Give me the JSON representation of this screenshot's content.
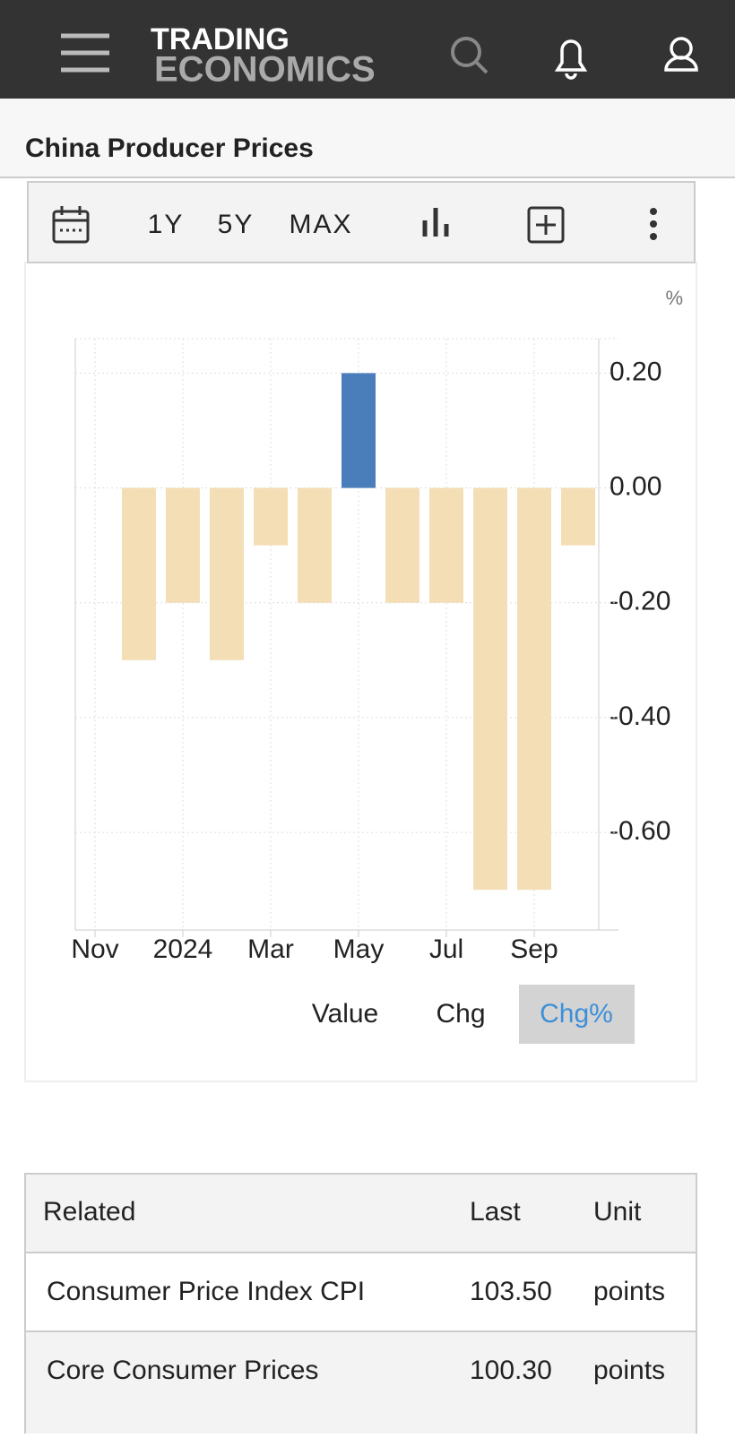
{
  "header": {
    "logo_top": "TRADING",
    "logo_bottom": "ECONOMICS"
  },
  "page_title": "China Producer Prices",
  "toolbar": {
    "ranges": [
      "1Y",
      "5Y",
      "MAX"
    ]
  },
  "chart_data": {
    "type": "bar",
    "unit": "%",
    "categories": [
      "Nov",
      null,
      "2024",
      null,
      "Mar",
      null,
      "May",
      null,
      "Jul",
      null,
      "Sep",
      null
    ],
    "values": [
      null,
      -0.3,
      -0.2,
      -0.3,
      -0.1,
      -0.2,
      0.2,
      -0.2,
      -0.2,
      -0.7,
      -0.7,
      -0.1
    ],
    "positive_color": "#4a7ebb",
    "negative_color": "#f4deb5",
    "ylim": [
      -0.77,
      0.26
    ],
    "yticks": [
      {
        "value": 0.2,
        "label": "0.20"
      },
      {
        "value": 0,
        "label": "0.00"
      },
      {
        "value": -0.2,
        "label": "-0.20"
      },
      {
        "value": -0.4,
        "label": "-0.40"
      },
      {
        "value": -0.6,
        "label": "-0.60"
      }
    ],
    "grid": true
  },
  "modes": {
    "options": [
      "Value",
      "Chg",
      "Chg%"
    ],
    "selected": 2
  },
  "table": {
    "columns": [
      "Related",
      "Last",
      "Unit"
    ],
    "rows": [
      [
        "Consumer Price Index CPI",
        "103.50",
        "points"
      ],
      [
        "Core Consumer Prices",
        "100.30",
        "points"
      ]
    ]
  }
}
